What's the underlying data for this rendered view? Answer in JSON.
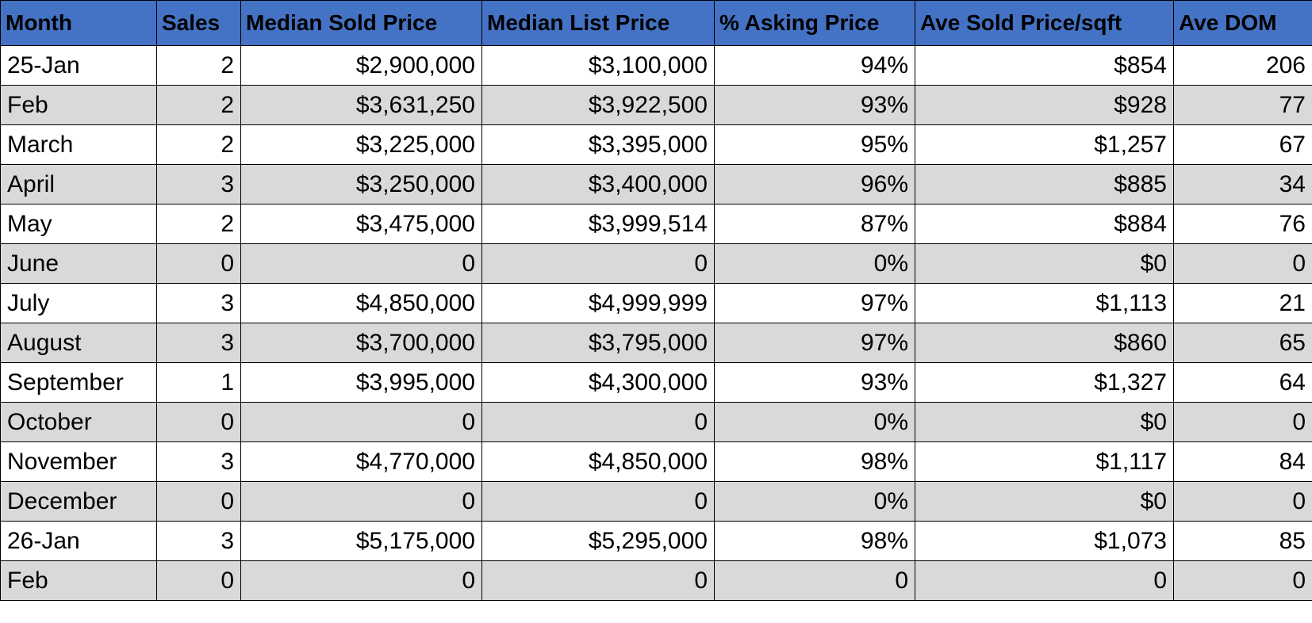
{
  "table": {
    "header": [
      "Month",
      "Sales",
      "Median Sold Price",
      "Median List Price",
      "% Asking Price",
      "Ave Sold Price/sqft",
      "Ave DOM"
    ],
    "rows": [
      [
        "25-Jan",
        "2",
        "$2,900,000",
        "$3,100,000",
        "94%",
        "$854",
        "206"
      ],
      [
        "Feb",
        "2",
        "$3,631,250",
        "$3,922,500",
        "93%",
        "$928",
        "77"
      ],
      [
        "March",
        "2",
        "$3,225,000",
        "$3,395,000",
        "95%",
        "$1,257",
        "67"
      ],
      [
        "April",
        "3",
        "$3,250,000",
        "$3,400,000",
        "96%",
        "$885",
        "34"
      ],
      [
        "May",
        "2",
        "$3,475,000",
        "$3,999,514",
        "87%",
        "$884",
        "76"
      ],
      [
        "June",
        "0",
        "0",
        "0",
        "0%",
        "$0",
        "0"
      ],
      [
        "July",
        "3",
        "$4,850,000",
        "$4,999,999",
        "97%",
        "$1,113",
        "21"
      ],
      [
        "August",
        "3",
        "$3,700,000",
        "$3,795,000",
        "97%",
        "$860",
        "65"
      ],
      [
        "September",
        "1",
        "$3,995,000",
        "$4,300,000",
        "93%",
        "$1,327",
        "64"
      ],
      [
        "October",
        "0",
        "0",
        "0",
        "0%",
        "$0",
        "0"
      ],
      [
        "November",
        "3",
        "$4,770,000",
        "$4,850,000",
        "98%",
        "$1,117",
        "84"
      ],
      [
        "December",
        "0",
        "0",
        "0",
        "0%",
        "$0",
        "0"
      ],
      [
        "26-Jan",
        "3",
        "$5,175,000",
        "$5,295,000",
        "98%",
        "$1,073",
        "85"
      ],
      [
        "Feb",
        "0",
        "0",
        "0",
        "0",
        "0",
        "0"
      ]
    ]
  }
}
